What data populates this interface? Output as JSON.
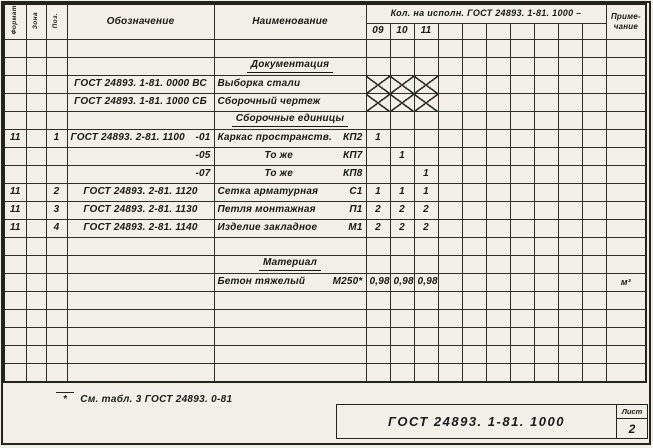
{
  "colors": {
    "ink": "#24241f",
    "paper": "#f1efe8"
  },
  "header": {
    "format_label": "Формат",
    "zone_label": "Зона",
    "pos_label": "Поз.",
    "designation_label": "Обозначение",
    "name_label": "Наименование",
    "qty_group_label": "Кол. на исполн.  ГОСТ 24893. 1-81. 1000 –",
    "qty_columns": [
      "09",
      "10",
      "11",
      "",
      "",
      "",
      "",
      "",
      "",
      ""
    ],
    "note_label_line1": "Приме-",
    "note_label_line2": "чание"
  },
  "rows": [
    {},
    {
      "section": "Документация"
    },
    {
      "designation": "ГОСТ 24893. 1-81. 0000 ВС",
      "name": "Выборка стали",
      "xmark": [
        0,
        1,
        2
      ]
    },
    {
      "designation": "ГОСТ 24893. 1-81. 1000 СБ",
      "name": "Сборочный чертеж",
      "xmark": [
        0,
        1,
        2
      ]
    },
    {
      "section": "Сборочные единицы"
    },
    {
      "format": "11",
      "pos": "1",
      "designation": "ГОСТ 24893.  2-81. 1100",
      "suffix": "-01",
      "name": "Каркас пространств.",
      "code": "КП2",
      "name_align": "left",
      "qty": [
        "1",
        "",
        "",
        "",
        "",
        "",
        "",
        "",
        "",
        ""
      ]
    },
    {
      "suffix": "-05",
      "name": "То же",
      "code": "КП7",
      "name_align": "center",
      "qty": [
        "",
        "1",
        "",
        "",
        "",
        "",
        "",
        "",
        "",
        ""
      ]
    },
    {
      "suffix": "-07",
      "name": "То же",
      "code": "КП8",
      "name_align": "center",
      "qty": [
        "",
        "",
        "1",
        "",
        "",
        "",
        "",
        "",
        "",
        ""
      ]
    },
    {
      "format": "11",
      "pos": "2",
      "designation": "ГОСТ 24893.  2-81. 1120",
      "name": "Сетка арматурная",
      "code": "С1",
      "name_align": "left",
      "qty": [
        "1",
        "1",
        "1",
        "",
        "",
        "",
        "",
        "",
        "",
        ""
      ]
    },
    {
      "format": "11",
      "pos": "3",
      "designation": "ГОСТ 24893.  2-81. 1130",
      "name": "Петля монтажная",
      "code": "П1",
      "name_align": "left",
      "qty": [
        "2",
        "2",
        "2",
        "",
        "",
        "",
        "",
        "",
        "",
        ""
      ]
    },
    {
      "format": "11",
      "pos": "4",
      "designation": "ГОСТ 24893.  2-81. 1140",
      "name": "Изделие закладное",
      "code": "М1",
      "name_align": "left",
      "qty": [
        "2",
        "2",
        "2",
        "",
        "",
        "",
        "",
        "",
        "",
        ""
      ]
    },
    {},
    {
      "section": "Материал"
    },
    {
      "name": "Бетон тяжелый",
      "code": "М250*",
      "name_align": "left",
      "qty": [
        "0,98",
        "0,98",
        "0,98",
        "",
        "",
        "",
        "",
        "",
        "",
        ""
      ],
      "note": "м³"
    },
    {},
    {},
    {},
    {},
    {}
  ],
  "footnote": {
    "marker": "*",
    "text": "См. табл. 3  ГОСТ 24893. 0-81"
  },
  "title_block": {
    "document_number": "ГОСТ 24893. 1-81. 1000",
    "sheet_label": "Лист",
    "sheet_number": "2"
  }
}
